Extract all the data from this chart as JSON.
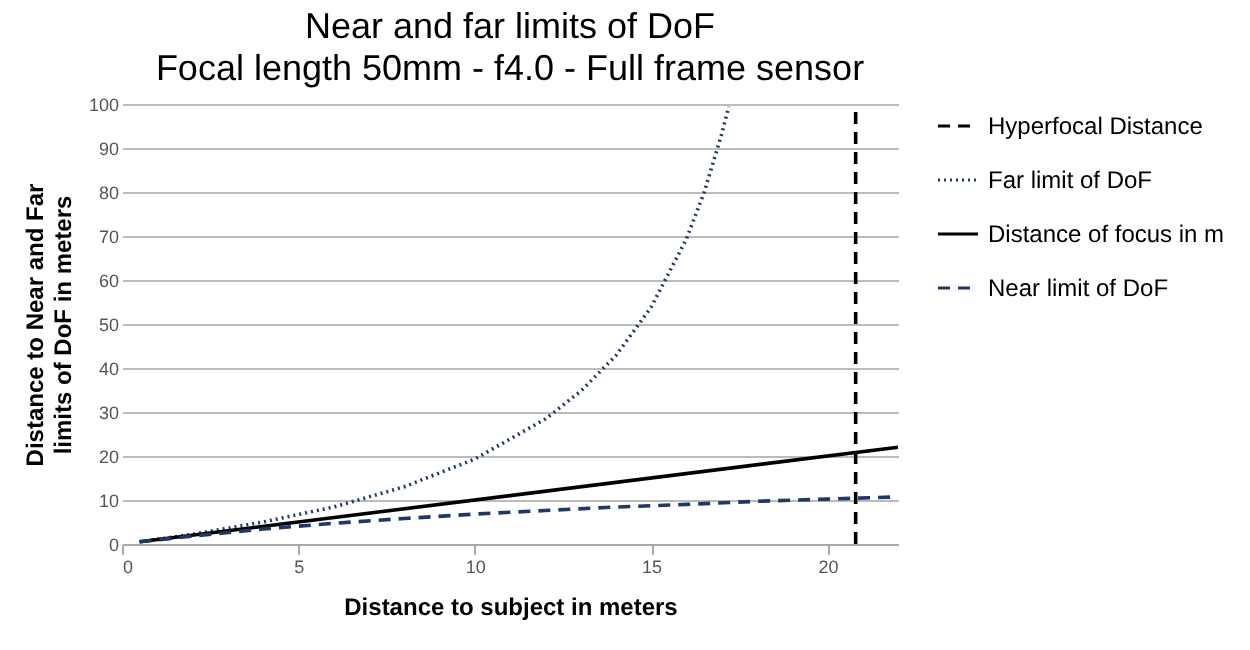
{
  "chart_data": {
    "type": "line",
    "title": "Near and far limits of DoF",
    "subtitle": "Focal length 50mm - f4.0 - Full frame sensor",
    "xlabel": "Distance to subject in meters",
    "ylabel": "Distance to Near and Far limits of DoF in meters",
    "xlim": [
      0,
      22
    ],
    "xticks": [
      0,
      5,
      10,
      15,
      20
    ],
    "ylim": [
      0,
      100
    ],
    "yticks": [
      0,
      10,
      20,
      30,
      40,
      50,
      60,
      70,
      80,
      90,
      100
    ],
    "grid": "y",
    "legend": "right",
    "marker": "none",
    "series": [
      {
        "name": "Hyperfocal Distance",
        "color": "#000000",
        "line_style": "dashed",
        "x": [
          20.8,
          20.8
        ],
        "values": [
          0,
          100
        ]
      },
      {
        "name": "Far limit of DoF",
        "color": "#1f3864",
        "line_style": "dotted",
        "x": [
          0.5,
          2,
          4,
          6,
          8,
          10,
          12,
          13,
          14,
          15,
          16,
          16.5,
          17,
          17.2
        ],
        "values": [
          0.5,
          2.2,
          5,
          8.4,
          13,
          19.3,
          28.4,
          34.7,
          42.8,
          53.8,
          69.3,
          79.8,
          93.1,
          99.4
        ]
      },
      {
        "name": "Distance of focus in m",
        "color": "#000000",
        "line_style": "solid",
        "x": [
          0.5,
          22
        ],
        "values": [
          0.5,
          22
        ]
      },
      {
        "name": "Near limit of DoF",
        "color": "#1f3864",
        "line_style": "dashed",
        "x": [
          0.5,
          2,
          4,
          6,
          8,
          10,
          12,
          14,
          16,
          18,
          20,
          22
        ],
        "values": [
          0.5,
          1.8,
          3.4,
          4.7,
          5.8,
          6.8,
          7.6,
          8.4,
          9.0,
          9.7,
          10.2,
          10.7
        ]
      }
    ]
  }
}
